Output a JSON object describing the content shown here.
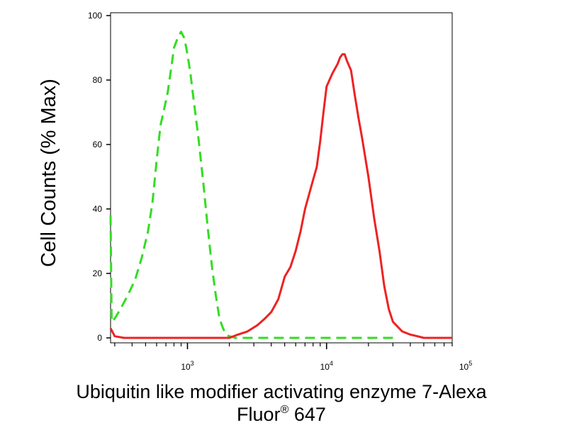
{
  "chart_data": {
    "type": "line",
    "title": "",
    "ylabel": "Cell Counts (% Max)",
    "xlabel_main": "Ubiquitin like modifier activating enzyme 7-Alexa",
    "xlabel_fluor": "Fluor",
    "xlabel_mark": "®",
    "xlabel_channel": "647",
    "x_scale": "log",
    "xlim": [
      280,
      80000
    ],
    "ylim": [
      0,
      102
    ],
    "y_ticks": [
      "0",
      "20",
      "40",
      "60",
      "80",
      "100"
    ],
    "x_ticks": [
      {
        "base": "10",
        "exp": "3",
        "value": 1000
      },
      {
        "base": "10",
        "exp": "4",
        "value": 10000
      },
      {
        "base": "10",
        "exp": "5",
        "value": 100000
      }
    ],
    "series": [
      {
        "color": "#33dd22",
        "style": "dashed",
        "x": [
          280,
          285,
          300,
          330,
          370,
          420,
          470,
          520,
          560,
          600,
          640,
          680,
          720,
          760,
          800,
          850,
          900,
          950,
          1000,
          1050,
          1100,
          1200,
          1300,
          1400,
          1500,
          1600,
          1700,
          1800,
          1900,
          2000,
          2100,
          2200,
          2500,
          3000,
          5000,
          10000,
          20000,
          30000
        ],
        "y": [
          38,
          5,
          6,
          9,
          13,
          18,
          25,
          33,
          42,
          55,
          66,
          71,
          76,
          83,
          90,
          93,
          95,
          93,
          88,
          82,
          75,
          62,
          48,
          34,
          22,
          13,
          6,
          3,
          1,
          0.5,
          0.3,
          0,
          0,
          0,
          0,
          0,
          0,
          0
        ]
      },
      {
        "color": "#ee2222",
        "style": "solid",
        "x": [
          280,
          300,
          350,
          400,
          500,
          700,
          1000,
          1500,
          2000,
          2300,
          2700,
          3200,
          3600,
          4000,
          4500,
          5000,
          5500,
          6000,
          6500,
          7000,
          8000,
          8500,
          9000,
          9500,
          10000,
          11000,
          12000,
          12500,
          13000,
          13500,
          14000,
          15000,
          16000,
          17000,
          18000,
          20000,
          22000,
          24000,
          26000,
          28000,
          30000,
          35000,
          40000,
          45000,
          50000,
          60000,
          80000
        ],
        "y": [
          3,
          0.5,
          0,
          0,
          0,
          0,
          0,
          0,
          0,
          1,
          2,
          4,
          6,
          8,
          12,
          19,
          22,
          27,
          33,
          40,
          49,
          53,
          61,
          70,
          78,
          82,
          85,
          87,
          88,
          88,
          86,
          83,
          75,
          68,
          62,
          50,
          37,
          27,
          16,
          9,
          5,
          2,
          1,
          0.5,
          0,
          0,
          0
        ]
      }
    ]
  }
}
